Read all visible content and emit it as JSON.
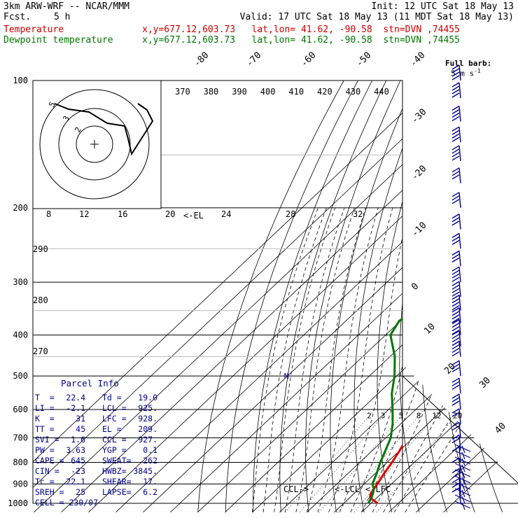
{
  "header": {
    "model": "3km ARW-WRF -- NCAR/MMM",
    "init": "Init: 12 UTC Sat 18 May 13",
    "fcst_label": "Fcst.",
    "fcst_value": "5 h",
    "valid": "Valid: 17 UTC Sat 18 May 13 (11 MDT Sat 18 May 13)",
    "lines": [
      {
        "name": "Temperature",
        "info": "x,y=677.12,603.73   lat,lon= 41.62, -90.58  stn=DVN ,74455",
        "color": "#cc0000"
      },
      {
        "name": "Dewpoint temperature",
        "info": "x,y=677.12,603.73   lat,lon= 41.62, -90.58  stn=DVN ,74455",
        "color": "#007700"
      }
    ]
  },
  "chart_data": {
    "type": "line",
    "title": "",
    "y_axis": {
      "scale": "log",
      "label": "",
      "ticks": [
        "100",
        "200",
        "300",
        "400",
        "500",
        "600",
        "700",
        "800",
        "900",
        "1000"
      ]
    },
    "isotherm_labels": [
      "-80",
      "-70",
      "-60",
      "-50",
      "-40",
      "-30",
      "-20",
      "-10",
      "0",
      "10",
      "20",
      "30",
      "40"
    ],
    "theta_labels": [
      "370",
      "380",
      "390",
      "400",
      "410",
      "420",
      "430",
      "440"
    ],
    "mixing_ratio_labels": [
      "2",
      "3",
      "5",
      "8",
      "12",
      "20"
    ],
    "lowlevel_theta_labels": [
      "290",
      "280",
      "270"
    ],
    "hodograph": {
      "units_label": "kts",
      "speed_ticks": [
        "8",
        "12",
        "16",
        "20",
        "24",
        "28",
        "32"
      ],
      "ring_labels": [
        "2",
        "3",
        "5"
      ]
    },
    "series": [
      {
        "name": "Temperature",
        "color": "#dd0000",
        "points": [
          [
            1000,
            22.4
          ],
          [
            970,
            17.5
          ],
          [
            950,
            16.2
          ],
          [
            925,
            15.5
          ],
          [
            900,
            14.8
          ],
          [
            850,
            13.2
          ],
          [
            800,
            11.8
          ],
          [
            750,
            10.0
          ],
          [
            700,
            7.8
          ],
          [
            650,
            5.2
          ],
          [
            600,
            2.3
          ],
          [
            550,
            -1.0
          ],
          [
            500,
            -4.9
          ],
          [
            450,
            -9.6
          ],
          [
            400,
            -14.6
          ],
          [
            350,
            -20.6
          ],
          [
            300,
            -27.6
          ],
          [
            250,
            -35.6
          ],
          [
            220,
            -40.6
          ],
          [
            200,
            -45.5
          ],
          [
            180,
            -50.0
          ],
          [
            165,
            -52.0
          ],
          [
            150,
            -53.5
          ],
          [
            140,
            -53.0
          ],
          [
            130,
            -51.5
          ],
          [
            120,
            -51.0
          ],
          [
            110,
            -50.5
          ],
          [
            100,
            -49.5
          ]
        ]
      },
      {
        "name": "Dewpoint temperature",
        "color": "#007700",
        "points": [
          [
            1000,
            19.0
          ],
          [
            970,
            18.0
          ],
          [
            950,
            17.0
          ],
          [
            925,
            15.5
          ],
          [
            900,
            13.0
          ],
          [
            850,
            10.5
          ],
          [
            800,
            7.5
          ],
          [
            750,
            4.8
          ],
          [
            700,
            1.8
          ],
          [
            650,
            -2.8
          ],
          [
            600,
            -8.5
          ],
          [
            550,
            -15.0
          ],
          [
            500,
            -20.8
          ],
          [
            450,
            -28.2
          ],
          [
            400,
            -38.2
          ],
          [
            370,
            -40.5
          ],
          [
            340,
            -36.8
          ],
          [
            320,
            -39.0
          ],
          [
            300,
            -43.5
          ],
          [
            275,
            -48.5
          ],
          [
            250,
            -52.0
          ],
          [
            220,
            -55.5
          ],
          [
            200,
            -59.2
          ],
          [
            180,
            -62.0
          ],
          [
            165,
            -64.0
          ],
          [
            150,
            -65.5
          ],
          [
            140,
            -67.0
          ],
          [
            120,
            -72.0
          ],
          [
            100,
            -79.0
          ]
        ]
      }
    ],
    "annotations": {
      "el": "<-EL",
      "ccl": "CCL->",
      "lcl": "<-LCL",
      "lfc": "<-LFC",
      "marker": "M"
    }
  },
  "parcel_info": {
    "title": "Parcel Info",
    "rows": [
      [
        "T  =",
        "22.4",
        "Td =",
        "19.0"
      ],
      [
        "LI =",
        "-2.1",
        "LCL =",
        "925."
      ],
      [
        "K  =",
        "31",
        "LFC =",
        "928."
      ],
      [
        "TT =",
        "45",
        "EL =",
        "209."
      ],
      [
        "SVI =",
        "1.6",
        "CCL =",
        "927."
      ],
      [
        "PW =",
        "3.63",
        "YGP =",
        "0.1"
      ],
      [
        "CAPE =",
        "645",
        "SWEAT=",
        "262"
      ],
      [
        "CIN =",
        "-23",
        "HWBZ=",
        "3845."
      ],
      [
        "Tc =",
        "22.1",
        "SHEAR=",
        "17."
      ],
      [
        "SREH =",
        "25",
        "LAPSE=",
        "6.2"
      ]
    ],
    "cell": "CELL = 230/07"
  },
  "wind_barbs": {
    "title": "Full barb:",
    "unit": "5 m s",
    "exponent": "-1",
    "levels": [
      [
        100,
        120,
        20
      ],
      [
        110,
        120,
        20
      ],
      [
        125,
        125,
        20
      ],
      [
        140,
        125,
        20
      ],
      [
        155,
        125,
        20
      ],
      [
        175,
        130,
        15
      ],
      [
        200,
        135,
        15
      ],
      [
        225,
        135,
        15
      ],
      [
        250,
        140,
        15
      ],
      [
        275,
        140,
        15
      ],
      [
        300,
        145,
        20
      ],
      [
        325,
        145,
        20
      ],
      [
        350,
        150,
        20
      ],
      [
        375,
        150,
        20
      ],
      [
        400,
        155,
        20
      ],
      [
        425,
        160,
        20
      ],
      [
        450,
        165,
        20
      ],
      [
        500,
        170,
        15
      ],
      [
        550,
        170,
        15
      ],
      [
        600,
        175,
        15
      ],
      [
        650,
        180,
        10
      ],
      [
        700,
        185,
        10
      ],
      [
        750,
        190,
        10
      ],
      [
        800,
        195,
        5
      ],
      [
        850,
        200,
        5
      ],
      [
        900,
        210,
        5
      ],
      [
        925,
        220,
        5
      ],
      [
        950,
        225,
        5
      ],
      [
        975,
        230,
        5
      ],
      [
        1000,
        230,
        5
      ]
    ]
  },
  "colors": {
    "temperature": "#dd0000",
    "dewpoint": "#007700",
    "parcel": "#00008b",
    "barbs": "#00008b"
  }
}
